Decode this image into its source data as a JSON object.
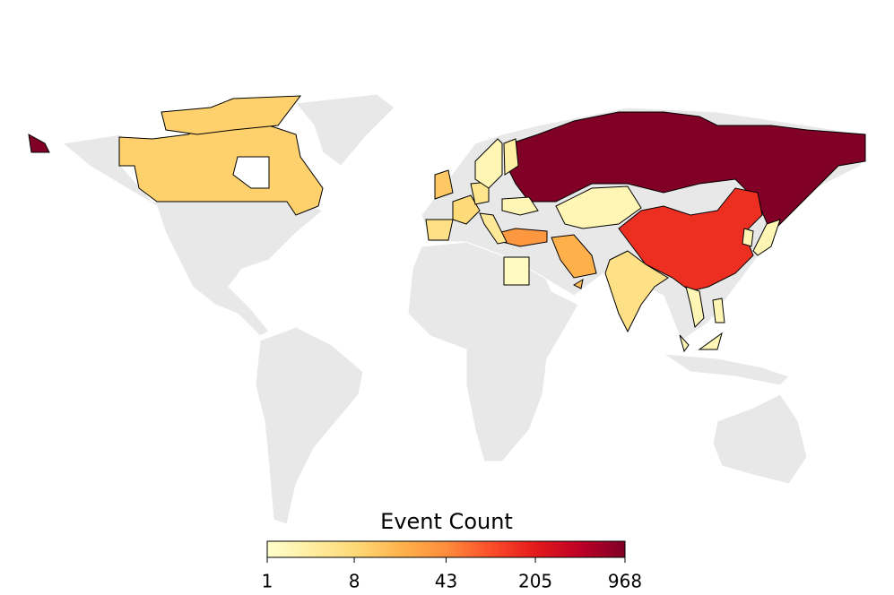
{
  "chart_data": {
    "type": "choropleth",
    "values": [
      968,
      150,
      10,
      6,
      20,
      35,
      2,
      2,
      12,
      8,
      6,
      5,
      4,
      2,
      3,
      1.5,
      2,
      2,
      2,
      2,
      2,
      15
    ],
    "colorbar": {
      "title": "Event Count",
      "lim": [
        1,
        968
      ],
      "scale": "log1p",
      "ticks": [
        1,
        8,
        43,
        205,
        968
      ],
      "colors": [
        "#ffffcc",
        "#ffeda0",
        "#fed976",
        "#feb24c",
        "#fd8d3c",
        "#fc4e2a",
        "#e31a1c",
        "#bd0026",
        "#800026"
      ]
    },
    "land_color": "#e8e8e8"
  }
}
